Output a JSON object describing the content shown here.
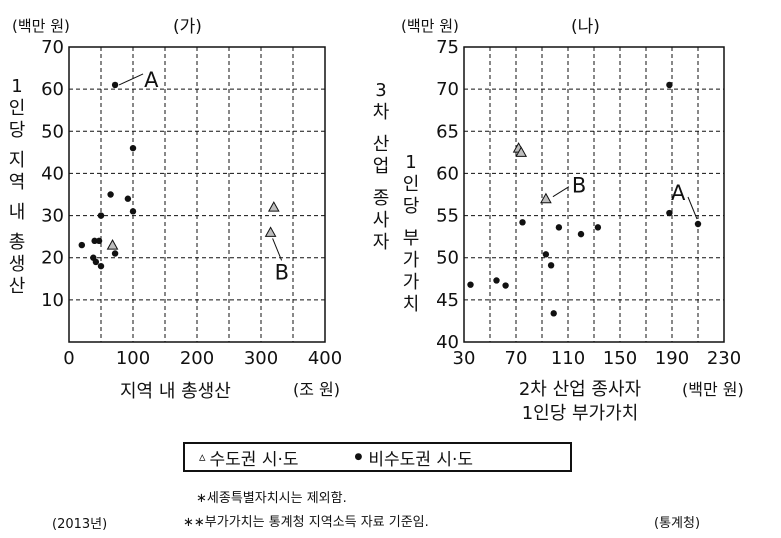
{
  "chart_data": [
    {
      "type": "scatter",
      "title": "(가)",
      "unit_y": "(백만 원)",
      "unit_x": "(조 원)",
      "xlabel": "지역 내 총생산",
      "ylabel": "1인당 지역 내 총생산",
      "xlim": [
        0,
        400
      ],
      "ylim": [
        0,
        70
      ],
      "x_ticks": [
        0,
        100,
        200,
        300,
        400
      ],
      "y_ticks": [
        10,
        20,
        30,
        40,
        50,
        60,
        70
      ],
      "grid": true,
      "series": [
        {
          "name": "수도권 시·도",
          "marker": "triangle",
          "points": [
            {
              "x": 68,
              "y": 23
            },
            {
              "x": 315,
              "y": 26
            },
            {
              "x": 320,
              "y": 32
            }
          ]
        },
        {
          "name": "비수도권 시·도",
          "marker": "dot",
          "points": [
            {
              "x": 72,
              "y": 61
            },
            {
              "x": 100,
              "y": 46
            },
            {
              "x": 65,
              "y": 35
            },
            {
              "x": 92,
              "y": 34
            },
            {
              "x": 100,
              "y": 31
            },
            {
              "x": 50,
              "y": 30
            },
            {
              "x": 40,
              "y": 24
            },
            {
              "x": 47,
              "y": 24
            },
            {
              "x": 20,
              "y": 23
            },
            {
              "x": 72,
              "y": 21
            },
            {
              "x": 38,
              "y": 20
            },
            {
              "x": 42,
              "y": 19
            },
            {
              "x": 50,
              "y": 18
            }
          ]
        }
      ],
      "annotations": [
        {
          "text": "A",
          "x": 72,
          "y": 61
        },
        {
          "text": "B",
          "x": 315,
          "y": 26
        }
      ]
    },
    {
      "type": "scatter",
      "title": "(나)",
      "unit_y": "(백만 원)",
      "unit_x": "(백만 원)",
      "xlabel": "2차 산업 종사자 1인당 부가가치",
      "ylabel": "3차 산업 종사자 1인당 부가가치",
      "xlim": [
        30,
        230
      ],
      "ylim": [
        40,
        75
      ],
      "x_ticks": [
        30,
        70,
        110,
        150,
        190,
        230
      ],
      "y_ticks": [
        40,
        45,
        50,
        55,
        60,
        65,
        70,
        75
      ],
      "grid": true,
      "series": [
        {
          "name": "수도권 시·도",
          "marker": "triangle",
          "points": [
            {
              "x": 72,
              "y": 63
            },
            {
              "x": 74,
              "y": 62.5
            },
            {
              "x": 93,
              "y": 57
            }
          ]
        },
        {
          "name": "비수도권 시·도",
          "marker": "dot",
          "points": [
            {
              "x": 188,
              "y": 70.5
            },
            {
              "x": 188,
              "y": 55.3
            },
            {
              "x": 210,
              "y": 54
            },
            {
              "x": 75,
              "y": 54.2
            },
            {
              "x": 103,
              "y": 53.6
            },
            {
              "x": 133,
              "y": 53.6
            },
            {
              "x": 120,
              "y": 52.8
            },
            {
              "x": 93,
              "y": 50.4
            },
            {
              "x": 97,
              "y": 49.1
            },
            {
              "x": 35,
              "y": 46.8
            },
            {
              "x": 55,
              "y": 47.3
            },
            {
              "x": 62,
              "y": 46.7
            },
            {
              "x": 99,
              "y": 43.4
            }
          ]
        }
      ],
      "annotations": [
        {
          "text": "B",
          "x": 93,
          "y": 57
        },
        {
          "text": "A",
          "x": 210,
          "y": 54
        }
      ]
    }
  ],
  "legend": {
    "capital": {
      "symbol": "▵",
      "label": "수도권 시·도"
    },
    "non_capital": {
      "symbol": "●",
      "label": "비수도권 시·도"
    }
  },
  "notes": {
    "note1": "∗세종특별자치시는 제외함.",
    "note2": "∗∗부가가치는 통계청 지역소득 자료 기준임.",
    "year": "(2013년)",
    "source": "(통계청)"
  },
  "colors": {
    "triangle_fill": "#bdbdbd",
    "dot": "#111111",
    "line": "#111111"
  }
}
